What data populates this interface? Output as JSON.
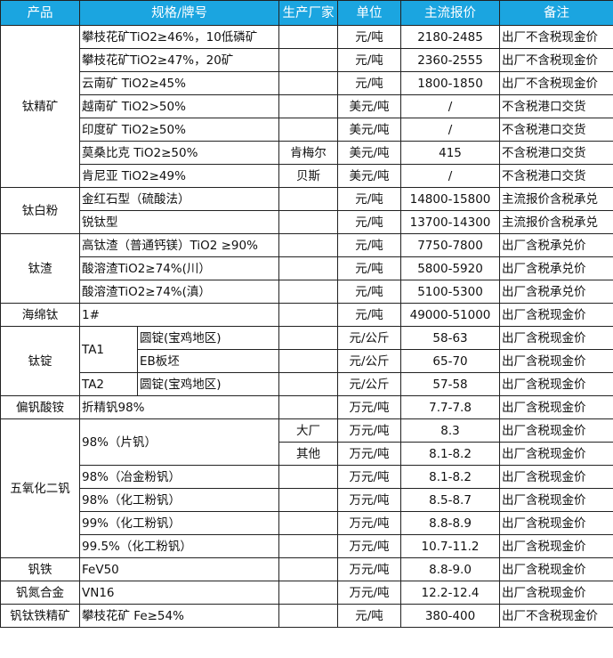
{
  "header": {
    "product": "产品",
    "spec": "规格/牌号",
    "maker": "生产厂家",
    "unit": "单位",
    "price": "主流报价",
    "note": "备注"
  },
  "groups": [
    {
      "product": "钛精矿",
      "items": [
        {
          "spec": "攀枝花矿TiO2≥46%，10低磷矿",
          "maker": "",
          "unit": "元/吨",
          "price": "2180-2485",
          "note": "出厂不含税现金价"
        },
        {
          "spec": "攀枝花矿TiO2≥47%，20矿",
          "maker": "",
          "unit": "元/吨",
          "price": "2360-2555",
          "note": "出厂不含税现金价"
        },
        {
          "spec": "云南矿 TiO2≥45%",
          "maker": "",
          "unit": "元/吨",
          "price": "1800-1850",
          "note": "出厂不含税现金价"
        },
        {
          "spec": "越南矿 TiO2>50%",
          "maker": "",
          "unit": "美元/吨",
          "price": "/",
          "note": "不含税港口交货"
        },
        {
          "spec": "印度矿 TiO2≥50%",
          "maker": "",
          "unit": "美元/吨",
          "price": "/",
          "note": "不含税港口交货"
        },
        {
          "spec": "莫桑比克 TiO2≥50%",
          "maker": "肯梅尔",
          "unit": "美元/吨",
          "price": "415",
          "note": "不含税港口交货"
        },
        {
          "spec": "肯尼亚 TiO2≥49%",
          "maker": "贝斯",
          "unit": "美元/吨",
          "price": "/",
          "note": "不含税港口交货"
        }
      ]
    },
    {
      "product": "钛白粉",
      "items": [
        {
          "spec": "金红石型（硫酸法）",
          "maker": "",
          "unit": "元/吨",
          "price": "14800-15800",
          "note": "主流报价含税承兑"
        },
        {
          "spec": "锐钛型",
          "maker": "",
          "unit": "元/吨",
          "price": "13700-14300",
          "note": "主流报价含税承兑"
        }
      ]
    },
    {
      "product": "钛渣",
      "items": [
        {
          "spec": "高钛渣（普通钙镁）TiO2 ≥90%",
          "maker": "",
          "unit": "元/吨",
          "price": "7750-7800",
          "note": "出厂含税承兑价"
        },
        {
          "spec": "酸溶渣TiO2≥74%(川）",
          "maker": "",
          "unit": "元/吨",
          "price": "5800-5920",
          "note": "出厂含税承兑价"
        },
        {
          "spec": "酸溶渣TiO2≥74%(滇）",
          "maker": "",
          "unit": "元/吨",
          "price": "5100-5300",
          "note": "出厂含税承兑价"
        }
      ]
    },
    {
      "product": "海绵钛",
      "items": [
        {
          "spec": "1#",
          "maker": "",
          "unit": "元/吨",
          "price": "49000-51000",
          "note": "出厂含税现金价"
        }
      ]
    },
    {
      "product": "钛锭",
      "items": [
        {
          "grade": "TA1",
          "spec": "圆锭(宝鸡地区)",
          "maker": "",
          "unit": "元/公斤",
          "price": "58-63",
          "note": "出厂含税现金价"
        },
        {
          "grade": "TA1",
          "spec": "EB板坯",
          "maker": "",
          "unit": "元/公斤",
          "price": "65-70",
          "note": "出厂含税现金价"
        },
        {
          "grade": "TA2",
          "spec": "圆锭(宝鸡地区)",
          "maker": "",
          "unit": "元/公斤",
          "price": "57-58",
          "note": "出厂含税现金价"
        }
      ]
    },
    {
      "product": "偏钒酸铵",
      "items": [
        {
          "spec": "折精钒98%",
          "maker": "",
          "unit": "万元/吨",
          "price": "7.7-7.8",
          "note": "出厂含税现金价"
        }
      ]
    },
    {
      "product": "五氧化二钒",
      "items": [
        {
          "spec": "98%（片钒）",
          "maker": "大厂",
          "unit": "万元/吨",
          "price": "8.3",
          "note": "出厂含税现金价"
        },
        {
          "spec": "98%（片钒）",
          "maker": "其他",
          "unit": "万元/吨",
          "price": "8.1-8.2",
          "note": "出厂含税现金价"
        },
        {
          "spec": "98%（冶金粉钒）",
          "maker": "",
          "unit": "万元/吨",
          "price": "8.1-8.2",
          "note": "出厂含税现金价"
        },
        {
          "spec": "98%（化工粉钒）",
          "maker": "",
          "unit": "万元/吨",
          "price": "8.5-8.7",
          "note": "出厂含税现金价"
        },
        {
          "spec": "99%（化工粉钒）",
          "maker": "",
          "unit": "万元/吨",
          "price": "8.8-8.9",
          "note": "出厂含税现金价"
        },
        {
          "spec": "99.5%（化工粉钒）",
          "maker": "",
          "unit": "万元/吨",
          "price": "10.7-11.2",
          "note": "出厂含税现金价"
        }
      ]
    },
    {
      "product": "钒铁",
      "items": [
        {
          "spec": "FeV50",
          "maker": "",
          "unit": "万元/吨",
          "price": "8.8-9.0",
          "note": "出厂含税现金价"
        }
      ]
    },
    {
      "product": "钒氮合金",
      "items": [
        {
          "spec": "VN16",
          "maker": "",
          "unit": "万元/吨",
          "price": "12.2-12.4",
          "note": "出厂含税现金价"
        }
      ]
    },
    {
      "product": "钒钛铁精矿",
      "items": [
        {
          "spec": "攀枝花矿 Fe≥54%",
          "maker": "",
          "unit": "元/吨",
          "price": "380-400",
          "note": "出厂不含税现金价"
        }
      ]
    }
  ],
  "colors": {
    "header_bg": "#1ba5e0",
    "header_text": "#ffffff",
    "border": "#222222"
  }
}
